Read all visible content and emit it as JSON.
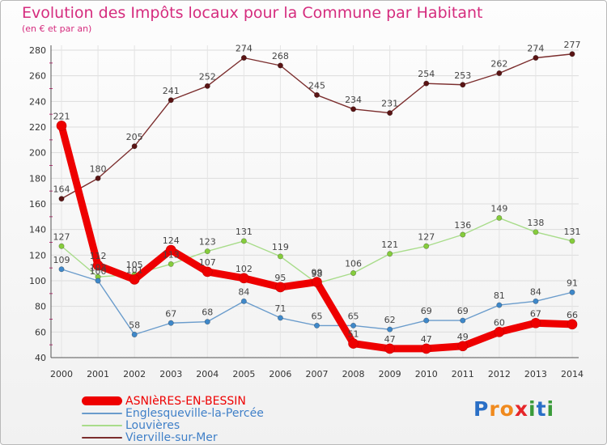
{
  "chart_data": {
    "type": "line",
    "title": "Evolution des Impôts locaux pour la Commune par Habitant",
    "subtitle": "(en € et par an)",
    "categories": [
      "2000",
      "2001",
      "2002",
      "2003",
      "2004",
      "2005",
      "2006",
      "2007",
      "2008",
      "2009",
      "2010",
      "2011",
      "2012",
      "2013",
      "2014"
    ],
    "yticks": [
      "40",
      "60",
      "80",
      "100",
      "120",
      "140",
      "160",
      "180",
      "200",
      "220",
      "240",
      "260",
      "280"
    ],
    "ylim": [
      40,
      280
    ],
    "grid": true,
    "legend_position": "bottom-left",
    "series": [
      {
        "name": "Vierville-sur-Mer",
        "color": "#7b2d2d",
        "marker_color": "#5a1414",
        "labels": [
          "164",
          "180",
          "205",
          "241",
          "252",
          "274",
          "268",
          "245",
          "234",
          "231",
          "254",
          "253",
          "262",
          "274",
          "277"
        ],
        "values": [
          164,
          180,
          205,
          241,
          252,
          274,
          268,
          245,
          234,
          231,
          254,
          253,
          262,
          274,
          277
        ]
      },
      {
        "name": "Louvières",
        "color": "#a8dc8a",
        "marker_color": "#85cc3c",
        "labels": [
          "127",
          "103",
          "105",
          "113",
          "123",
          "131",
          "119",
          "98",
          "106",
          "121",
          "127",
          "136",
          "149",
          "138",
          "131"
        ],
        "values": [
          127,
          103,
          105,
          113,
          123,
          131,
          119,
          98,
          106,
          121,
          127,
          136,
          149,
          138,
          131
        ]
      },
      {
        "name": "Englesqueville-la-Percée",
        "color": "#6a9ccc",
        "marker_color": "#3f88c9",
        "labels": [
          "109",
          "100",
          "58",
          "67",
          "68",
          "84",
          "71",
          "65",
          "65",
          "62",
          "69",
          "69",
          "81",
          "84",
          "91"
        ],
        "values": [
          109,
          100,
          58,
          67,
          68,
          84,
          71,
          65,
          65,
          62,
          69,
          69,
          81,
          84,
          91
        ]
      },
      {
        "name": "ASNIèRES-EN-BESSIN",
        "color": "#ee0000",
        "marker_color": "#ee0000",
        "labels": [
          "221",
          "112",
          "101",
          "124",
          "107",
          "102",
          "95",
          "99",
          "51",
          "47",
          "47",
          "49",
          "60",
          "67",
          "66"
        ],
        "values": [
          221,
          112,
          101,
          124,
          107,
          102,
          95,
          99,
          51,
          47,
          47,
          49,
          60,
          67,
          66
        ]
      }
    ]
  },
  "legend": {
    "items": [
      {
        "label": "ASNIèRES-EN-BESSIN",
        "color": "#ee0000",
        "thickness": 11
      },
      {
        "label": "Englesqueville-la-Percée",
        "color": "#6a9ccc",
        "thickness": 2
      },
      {
        "label": "Louvières",
        "color": "#a8dc8a",
        "thickness": 2
      },
      {
        "label": "Vierville-sur-Mer",
        "color": "#7b2d2d",
        "thickness": 2
      }
    ]
  },
  "logo": {
    "text": "Proxiti",
    "letters": [
      "P",
      "r",
      "o",
      "x",
      "i",
      "t",
      "i"
    ],
    "colors": [
      "#2a6fc6",
      "#f08a1e",
      "#f08a1e",
      "#e6262a",
      "#3a9b3a",
      "#2a6fc6",
      "#3a9b3a"
    ]
  }
}
